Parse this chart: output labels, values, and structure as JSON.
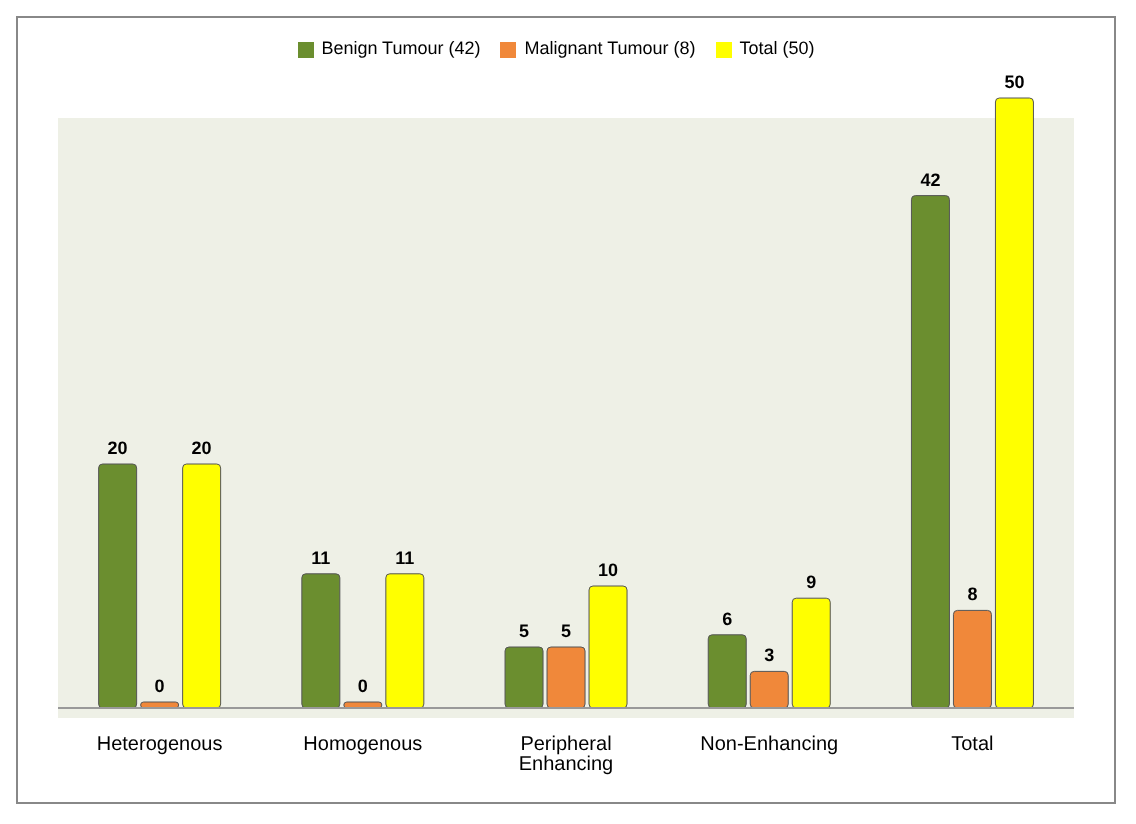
{
  "chart_data": {
    "type": "bar",
    "categories": [
      "Heterogenous",
      "Homogenous",
      "Peripheral Enhancing",
      "Non-Enhancing",
      "Total"
    ],
    "series": [
      {
        "name": "Benign Tumour (42)",
        "color": "#6b8e2f",
        "values": [
          20,
          11,
          5,
          6,
          42
        ]
      },
      {
        "name": "Malignant Tumour (8)",
        "color": "#f0883a",
        "values": [
          0,
          0,
          5,
          3,
          8
        ]
      },
      {
        "name": "Total (50)",
        "color": "#ffff00",
        "values": [
          20,
          11,
          10,
          9,
          50
        ]
      }
    ],
    "data_labels": true,
    "legend": "top",
    "grid": false
  }
}
